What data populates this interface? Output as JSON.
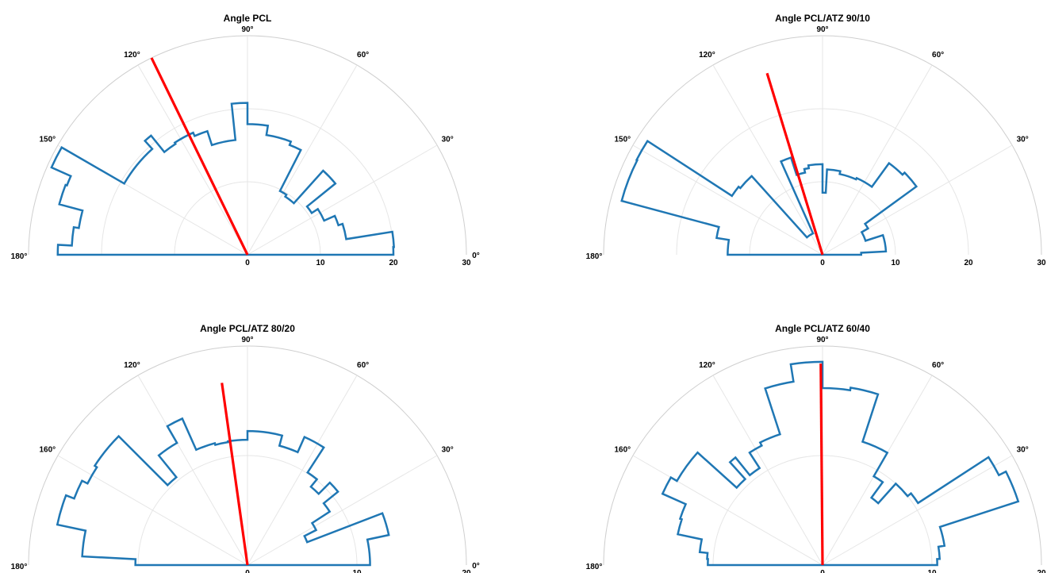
{
  "chart_data": [
    {
      "type": "polar-histogram",
      "title": "Angle PCL",
      "theta_ticks": [
        "0°",
        "30°",
        "60°",
        "90°",
        "120°",
        "150°",
        "180°"
      ],
      "r_ticks": [
        "0",
        "10",
        "20",
        "30"
      ],
      "rlim": [
        0,
        30
      ],
      "grid": true,
      "accent_colors": {
        "bars": "#1f77b4",
        "mean_line": "#ff0000"
      },
      "mean_angle_deg": 116,
      "mean_length": 30,
      "bins": [
        {
          "start": 0,
          "end": 3,
          "value": 20
        },
        {
          "start": 3,
          "end": 9,
          "value": 20.1
        },
        {
          "start": 9,
          "end": 18,
          "value": 13.7
        },
        {
          "start": 18,
          "end": 24,
          "value": 13.1
        },
        {
          "start": 24,
          "end": 33,
          "value": 11.5
        },
        {
          "start": 33,
          "end": 39,
          "value": 10.5
        },
        {
          "start": 39,
          "end": 48,
          "value": 15.5
        },
        {
          "start": 48,
          "end": 57,
          "value": 9.5
        },
        {
          "start": 57,
          "end": 63,
          "value": 9.8
        },
        {
          "start": 63,
          "end": 69,
          "value": 16.1
        },
        {
          "start": 69,
          "end": 81,
          "value": 16.6
        },
        {
          "start": 81,
          "end": 90,
          "value": 17.9
        },
        {
          "start": 90,
          "end": 96,
          "value": 20.8
        },
        {
          "start": 96,
          "end": 108,
          "value": 15.8
        },
        {
          "start": 108,
          "end": 114,
          "value": 17.8
        },
        {
          "start": 114,
          "end": 123,
          "value": 18.3
        },
        {
          "start": 123,
          "end": 129,
          "value": 18.1
        },
        {
          "start": 129,
          "end": 132,
          "value": 21
        },
        {
          "start": 132,
          "end": 150,
          "value": 19.5
        },
        {
          "start": 150,
          "end": 156,
          "value": 29.4
        },
        {
          "start": 156,
          "end": 159,
          "value": 26.5
        },
        {
          "start": 159,
          "end": 165,
          "value": 26.7
        },
        {
          "start": 165,
          "end": 171,
          "value": 23.4
        },
        {
          "start": 171,
          "end": 177,
          "value": 24.1
        },
        {
          "start": 177,
          "end": 180,
          "value": 26
        }
      ]
    },
    {
      "type": "polar-histogram",
      "title": "Angle PCL/ATZ 90/10",
      "theta_ticks": [
        "0°",
        "30°",
        "60°",
        "90°",
        "120°",
        "150°",
        "180°"
      ],
      "r_ticks": [
        "0",
        "10",
        "20",
        "30"
      ],
      "rlim": [
        0,
        30
      ],
      "grid": true,
      "accent_colors": {
        "bars": "#1f77b4",
        "mean_line": "#ff0000"
      },
      "mean_angle_deg": 107,
      "mean_length": 26,
      "bins": [
        {
          "start": 0,
          "end": 3,
          "value": 5.3
        },
        {
          "start": 3,
          "end": 18,
          "value": 8.7
        },
        {
          "start": 18,
          "end": 30,
          "value": 6.2
        },
        {
          "start": 30,
          "end": 36,
          "value": 7.2
        },
        {
          "start": 36,
          "end": 45,
          "value": 15.9
        },
        {
          "start": 45,
          "end": 54,
          "value": 15.5
        },
        {
          "start": 54,
          "end": 66,
          "value": 11.5
        },
        {
          "start": 66,
          "end": 78,
          "value": 11.3
        },
        {
          "start": 78,
          "end": 87,
          "value": 11.7
        },
        {
          "start": 87,
          "end": 90,
          "value": 8.5
        },
        {
          "start": 90,
          "end": 99,
          "value": 12.4
        },
        {
          "start": 99,
          "end": 102,
          "value": 12
        },
        {
          "start": 102,
          "end": 108,
          "value": 11.5
        },
        {
          "start": 108,
          "end": 114,
          "value": 14
        },
        {
          "start": 114,
          "end": 132,
          "value": 3.2
        },
        {
          "start": 132,
          "end": 141,
          "value": 14.5
        },
        {
          "start": 141,
          "end": 147,
          "value": 14.8
        },
        {
          "start": 147,
          "end": 153,
          "value": 28.6
        },
        {
          "start": 153,
          "end": 165,
          "value": 28.5
        },
        {
          "start": 165,
          "end": 171,
          "value": 14.7
        },
        {
          "start": 171,
          "end": 177,
          "value": 13
        },
        {
          "start": 177,
          "end": 180,
          "value": 13
        }
      ]
    },
    {
      "type": "polar-histogram",
      "title": "Angle PCL/ATZ 80/20",
      "theta_ticks": [
        "0°",
        "30°",
        "60°",
        "90°",
        "120°",
        "160°",
        "180°"
      ],
      "r_ticks": [
        "0",
        "10",
        "20"
      ],
      "rlim": [
        0,
        25
      ],
      "grid": true,
      "accent_colors": {
        "bars": "#1f77b4",
        "mean_line": "#ff0000"
      },
      "mean_angle_deg": 98,
      "mean_length": 21,
      "bins": [
        {
          "start": 0,
          "end": 3,
          "value": 14
        },
        {
          "start": 3,
          "end": 12,
          "value": 14
        },
        {
          "start": 12,
          "end": 21,
          "value": 16.5
        },
        {
          "start": 21,
          "end": 27,
          "value": 7.3
        },
        {
          "start": 27,
          "end": 33,
          "value": 8.8
        },
        {
          "start": 33,
          "end": 39,
          "value": 11.2
        },
        {
          "start": 39,
          "end": 45,
          "value": 13.3
        },
        {
          "start": 45,
          "end": 51,
          "value": 11.5
        },
        {
          "start": 51,
          "end": 57,
          "value": 12.6
        },
        {
          "start": 57,
          "end": 66,
          "value": 16
        },
        {
          "start": 66,
          "end": 75,
          "value": 14.1
        },
        {
          "start": 75,
          "end": 81,
          "value": 15.3
        },
        {
          "start": 81,
          "end": 90,
          "value": 15.3
        },
        {
          "start": 90,
          "end": 99,
          "value": 14.3
        },
        {
          "start": 99,
          "end": 105,
          "value": 14.2
        },
        {
          "start": 105,
          "end": 114,
          "value": 14.4
        },
        {
          "start": 114,
          "end": 120,
          "value": 18.3
        },
        {
          "start": 120,
          "end": 129,
          "value": 16.1
        },
        {
          "start": 129,
          "end": 135,
          "value": 12.9
        },
        {
          "start": 135,
          "end": 147,
          "value": 20.8
        },
        {
          "start": 147,
          "end": 153,
          "value": 20.5
        },
        {
          "start": 153,
          "end": 159,
          "value": 21.2
        },
        {
          "start": 159,
          "end": 168,
          "value": 22.2
        },
        {
          "start": 168,
          "end": 177,
          "value": 18.9
        },
        {
          "start": 177,
          "end": 180,
          "value": 12.8
        }
      ]
    },
    {
      "type": "polar-histogram",
      "title": "Angle PCL/ATZ 60/40",
      "theta_ticks": [
        "0°",
        "30°",
        "60°",
        "90°",
        "120°",
        "160°",
        "180°"
      ],
      "r_ticks": [
        "0",
        "10",
        "20"
      ],
      "rlim": [
        0,
        25
      ],
      "grid": true,
      "accent_colors": {
        "bars": "#1f77b4",
        "mean_line": "#ff0000"
      },
      "mean_angle_deg": 90.5,
      "mean_length": 23,
      "bins": [
        {
          "start": 0,
          "end": 3,
          "value": 13.1
        },
        {
          "start": 3,
          "end": 9,
          "value": 13.4
        },
        {
          "start": 9,
          "end": 18,
          "value": 14.1
        },
        {
          "start": 18,
          "end": 27,
          "value": 23.5
        },
        {
          "start": 27,
          "end": 33,
          "value": 22.6
        },
        {
          "start": 33,
          "end": 39,
          "value": 13
        },
        {
          "start": 39,
          "end": 48,
          "value": 12.5
        },
        {
          "start": 48,
          "end": 54,
          "value": 9.5
        },
        {
          "start": 54,
          "end": 60,
          "value": 11.7
        },
        {
          "start": 60,
          "end": 72,
          "value": 14.8
        },
        {
          "start": 72,
          "end": 81,
          "value": 20.5
        },
        {
          "start": 81,
          "end": 90,
          "value": 20.2
        },
        {
          "start": 90,
          "end": 99,
          "value": 23.2
        },
        {
          "start": 99,
          "end": 108,
          "value": 21.2
        },
        {
          "start": 108,
          "end": 117,
          "value": 15.7
        },
        {
          "start": 117,
          "end": 123,
          "value": 15.3
        },
        {
          "start": 123,
          "end": 129,
          "value": 13.2
        },
        {
          "start": 129,
          "end": 132,
          "value": 15.8
        },
        {
          "start": 132,
          "end": 138,
          "value": 13.2
        },
        {
          "start": 138,
          "end": 150,
          "value": 19.2
        },
        {
          "start": 150,
          "end": 156,
          "value": 20
        },
        {
          "start": 156,
          "end": 162,
          "value": 17.1
        },
        {
          "start": 162,
          "end": 168,
          "value": 16.9
        },
        {
          "start": 168,
          "end": 174,
          "value": 14.1
        },
        {
          "start": 174,
          "end": 177,
          "value": 13.2
        },
        {
          "start": 177,
          "end": 180,
          "value": 13.1
        }
      ]
    }
  ]
}
